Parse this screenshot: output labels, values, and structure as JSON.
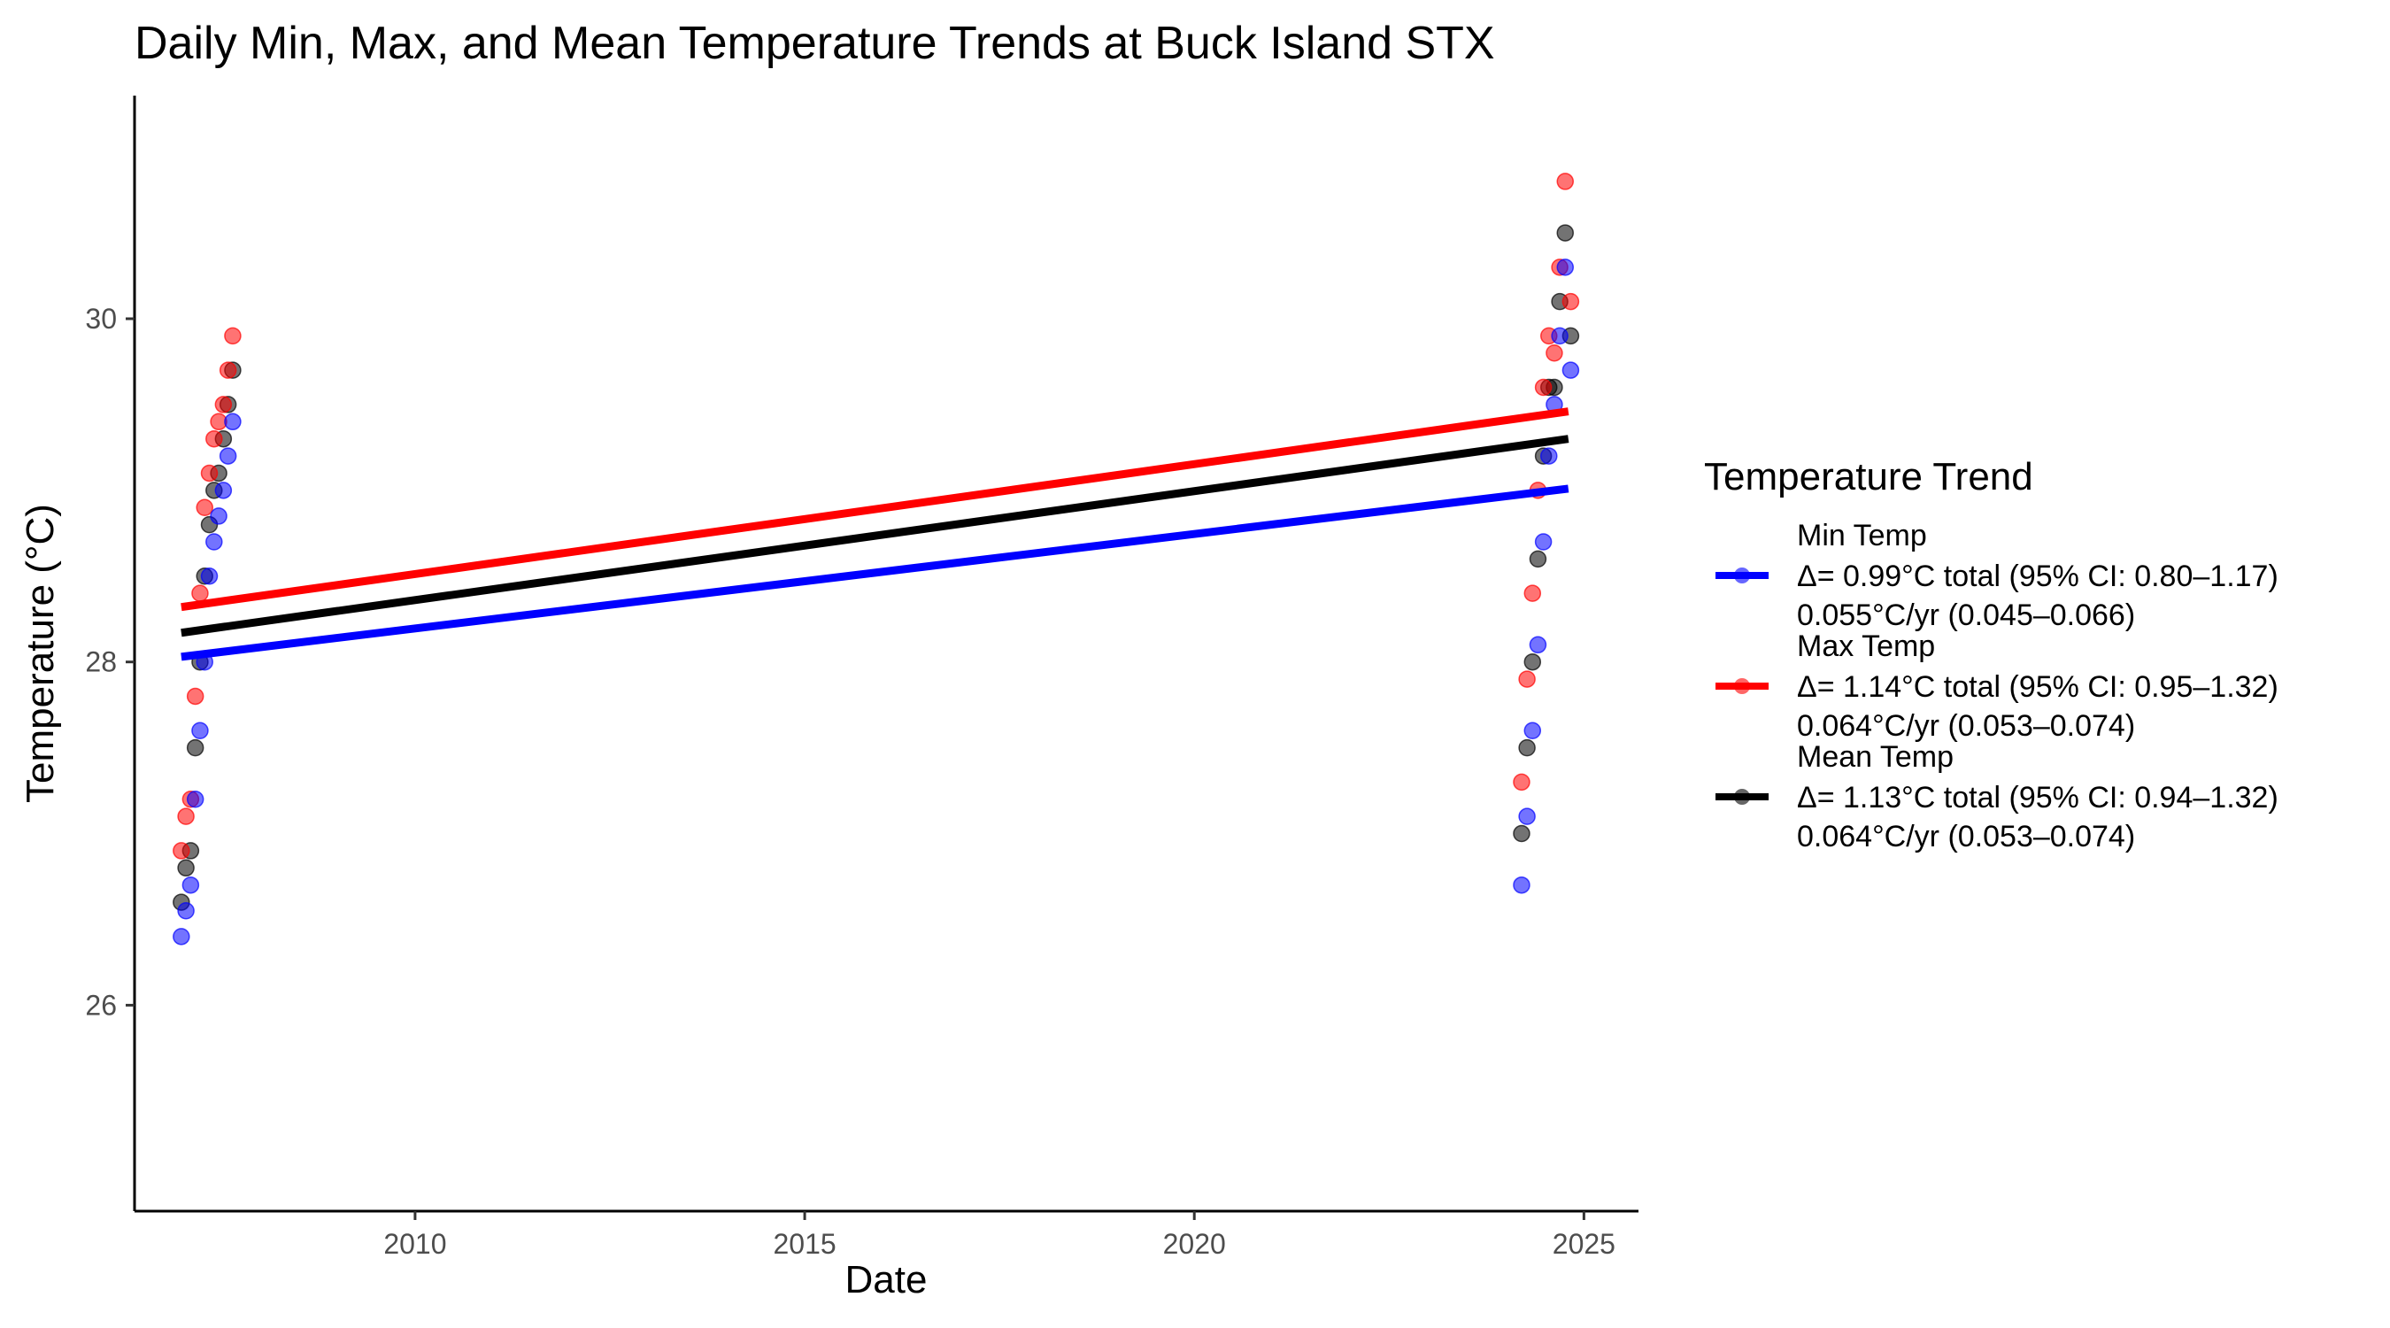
{
  "chart_data": {
    "type": "scatter",
    "title": "Daily Min, Max, and Mean Temperature Trends at Buck Island STX",
    "xlabel": "Date",
    "ylabel": "Temperature (°C)",
    "xlim": [
      2006.4,
      2025.7
    ],
    "ylim": [
      24.8,
      31.3
    ],
    "x_ticks": [
      {
        "value": 2010,
        "label": "2010"
      },
      {
        "value": 2015,
        "label": "2015"
      },
      {
        "value": 2020,
        "label": "2020"
      },
      {
        "value": 2025,
        "label": "2025"
      }
    ],
    "y_ticks": [
      {
        "value": 26,
        "label": "26"
      },
      {
        "value": 28,
        "label": "28"
      },
      {
        "value": 30,
        "label": "30"
      }
    ],
    "grid": false,
    "legend": {
      "title": "Temperature Trend",
      "position": "right",
      "entries": [
        {
          "series": "Min Temp",
          "color": "#0000ff",
          "label": "Min Temp",
          "line1": "Δ= 0.99°C total (95% CI: 0.80–1.17)",
          "line2": "0.055°C/yr (0.045–0.066)"
        },
        {
          "series": "Max Temp",
          "color": "#ff0000",
          "label": "Max Temp",
          "line1": "Δ= 1.14°C total (95% CI: 0.95–1.32)",
          "line2": "0.064°C/yr (0.053–0.074)"
        },
        {
          "series": "Mean Temp",
          "color": "#000000",
          "label": "Mean Temp",
          "line1": "Δ= 1.13°C total (95% CI: 0.94–1.32)",
          "line2": "0.064°C/yr (0.053–0.074)"
        }
      ]
    },
    "series": [
      {
        "name": "Min Temp",
        "color": "#0000ff",
        "points": [
          {
            "x": 2007.0,
            "y": 26.4
          },
          {
            "x": 2007.06,
            "y": 26.55
          },
          {
            "x": 2007.12,
            "y": 26.7
          },
          {
            "x": 2007.18,
            "y": 27.2
          },
          {
            "x": 2007.24,
            "y": 27.6
          },
          {
            "x": 2007.3,
            "y": 28.0
          },
          {
            "x": 2007.36,
            "y": 28.5
          },
          {
            "x": 2007.42,
            "y": 28.7
          },
          {
            "x": 2007.48,
            "y": 28.85
          },
          {
            "x": 2007.54,
            "y": 29.0
          },
          {
            "x": 2007.6,
            "y": 29.2
          },
          {
            "x": 2007.66,
            "y": 29.4
          },
          {
            "x": 2024.2,
            "y": 26.7
          },
          {
            "x": 2024.27,
            "y": 27.1
          },
          {
            "x": 2024.34,
            "y": 27.6
          },
          {
            "x": 2024.41,
            "y": 28.1
          },
          {
            "x": 2024.48,
            "y": 28.7
          },
          {
            "x": 2024.55,
            "y": 29.2
          },
          {
            "x": 2024.62,
            "y": 29.5
          },
          {
            "x": 2024.69,
            "y": 29.9
          },
          {
            "x": 2024.76,
            "y": 30.3
          },
          {
            "x": 2024.83,
            "y": 29.7
          }
        ],
        "trend": {
          "x": [
            2007.0,
            2024.8
          ],
          "y": [
            28.03,
            29.01
          ]
        }
      },
      {
        "name": "Max Temp",
        "color": "#ff0000",
        "points": [
          {
            "x": 2007.0,
            "y": 26.9
          },
          {
            "x": 2007.06,
            "y": 27.1
          },
          {
            "x": 2007.12,
            "y": 27.2
          },
          {
            "x": 2007.18,
            "y": 27.8
          },
          {
            "x": 2007.24,
            "y": 28.4
          },
          {
            "x": 2007.3,
            "y": 28.9
          },
          {
            "x": 2007.36,
            "y": 29.1
          },
          {
            "x": 2007.42,
            "y": 29.3
          },
          {
            "x": 2007.48,
            "y": 29.4
          },
          {
            "x": 2007.54,
            "y": 29.5
          },
          {
            "x": 2007.6,
            "y": 29.7
          },
          {
            "x": 2007.66,
            "y": 29.9
          },
          {
            "x": 2024.2,
            "y": 27.3
          },
          {
            "x": 2024.27,
            "y": 27.9
          },
          {
            "x": 2024.34,
            "y": 28.4
          },
          {
            "x": 2024.41,
            "y": 29.0
          },
          {
            "x": 2024.48,
            "y": 29.6
          },
          {
            "x": 2024.55,
            "y": 29.9
          },
          {
            "x": 2024.62,
            "y": 29.8
          },
          {
            "x": 2024.69,
            "y": 30.3
          },
          {
            "x": 2024.76,
            "y": 30.8
          },
          {
            "x": 2024.83,
            "y": 30.1
          }
        ],
        "trend": {
          "x": [
            2007.0,
            2024.8
          ],
          "y": [
            28.32,
            29.46
          ]
        }
      },
      {
        "name": "Mean Temp",
        "color": "#000000",
        "points": [
          {
            "x": 2007.0,
            "y": 26.6
          },
          {
            "x": 2007.06,
            "y": 26.8
          },
          {
            "x": 2007.12,
            "y": 26.9
          },
          {
            "x": 2007.18,
            "y": 27.5
          },
          {
            "x": 2007.24,
            "y": 28.0
          },
          {
            "x": 2007.3,
            "y": 28.5
          },
          {
            "x": 2007.36,
            "y": 28.8
          },
          {
            "x": 2007.42,
            "y": 29.0
          },
          {
            "x": 2007.48,
            "y": 29.1
          },
          {
            "x": 2007.54,
            "y": 29.3
          },
          {
            "x": 2007.6,
            "y": 29.5
          },
          {
            "x": 2007.66,
            "y": 29.7
          },
          {
            "x": 2024.2,
            "y": 27.0
          },
          {
            "x": 2024.27,
            "y": 27.5
          },
          {
            "x": 2024.34,
            "y": 28.0
          },
          {
            "x": 2024.41,
            "y": 28.6
          },
          {
            "x": 2024.48,
            "y": 29.2
          },
          {
            "x": 2024.55,
            "y": 29.6
          },
          {
            "x": 2024.62,
            "y": 29.6
          },
          {
            "x": 2024.69,
            "y": 30.1
          },
          {
            "x": 2024.76,
            "y": 30.5
          },
          {
            "x": 2024.83,
            "y": 29.9
          }
        ],
        "trend": {
          "x": [
            2007.0,
            2024.8
          ],
          "y": [
            28.17,
            29.3
          ]
        }
      }
    ]
  }
}
